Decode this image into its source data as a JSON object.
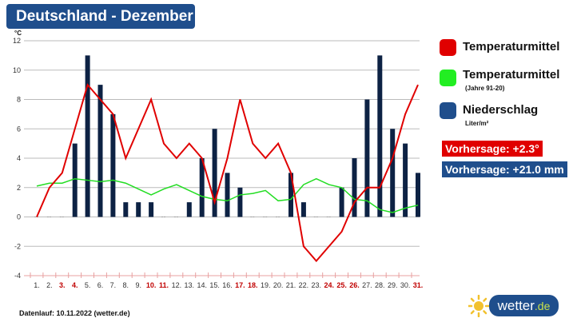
{
  "title": "Deutschland - Dezember",
  "chart_data": {
    "type": "bar+line",
    "ylabel": "°C",
    "ylim": [
      -4,
      12
    ],
    "yticks": [
      -4,
      -2,
      0,
      2,
      4,
      6,
      8,
      10,
      12
    ],
    "grid": true,
    "categories": [
      "1.",
      "2.",
      "3.",
      "4.",
      "5.",
      "6.",
      "7.",
      "8.",
      "9.",
      "10.",
      "11.",
      "12.",
      "13.",
      "14.",
      "15.",
      "16.",
      "17.",
      "18.",
      "19.",
      "20.",
      "21.",
      "22.",
      "23.",
      "24.",
      "25.",
      "26.",
      "27.",
      "28.",
      "29.",
      "30.",
      "31."
    ],
    "highlighted_days": [
      3,
      4,
      10,
      11,
      17,
      18,
      24,
      25,
      26,
      31
    ],
    "series": [
      {
        "name": "Temperaturmittel",
        "type": "line",
        "color": "#e00000",
        "values": [
          0,
          2,
          3,
          6,
          9,
          8,
          7,
          4,
          6,
          8,
          5,
          4,
          5,
          4,
          1,
          4,
          8,
          5,
          4,
          5,
          3,
          -2,
          -3,
          -2,
          -1,
          1,
          2,
          2,
          4,
          7,
          9
        ]
      },
      {
        "name": "Temperaturmittel (Jahre 91-20)",
        "type": "line",
        "color": "#22dd22",
        "values": [
          2.1,
          2.3,
          2.3,
          2.6,
          2.5,
          2.4,
          2.5,
          2.3,
          1.9,
          1.5,
          1.9,
          2.2,
          1.8,
          1.4,
          1.2,
          1.1,
          1.5,
          1.6,
          1.8,
          1.1,
          1.2,
          2.2,
          2.6,
          2.2,
          2.0,
          1.2,
          1.1,
          0.5,
          0.3,
          0.6,
          0.8
        ]
      },
      {
        "name": "Niederschlag",
        "type": "bar",
        "color": "#0d2244",
        "values": [
          0,
          0,
          0,
          5,
          11,
          9,
          7,
          1,
          1,
          1,
          0,
          0,
          1,
          4,
          6,
          3,
          2,
          0,
          0,
          0,
          3,
          1,
          0,
          0,
          2,
          4,
          8,
          11,
          6,
          5,
          3
        ]
      }
    ],
    "legend_placement": "right"
  },
  "legend": [
    {
      "label": "Temperaturmittel",
      "sub": "",
      "color": "#e00000"
    },
    {
      "label": "Temperaturmittel",
      "sub": "(Jahre 91-20)",
      "color": "#22ee22"
    },
    {
      "label": "Niederschlag",
      "sub": "Liter/m²",
      "color": "#1f4e8c"
    }
  ],
  "forecast_temp": "Vorhersage: +2.3°",
  "forecast_precip": "Vorhersage: +21.0 mm",
  "footer": "Datenlauf: 10.11.2022 (wetter.de)",
  "logo": {
    "main": "wetter",
    "tld": ".de"
  }
}
